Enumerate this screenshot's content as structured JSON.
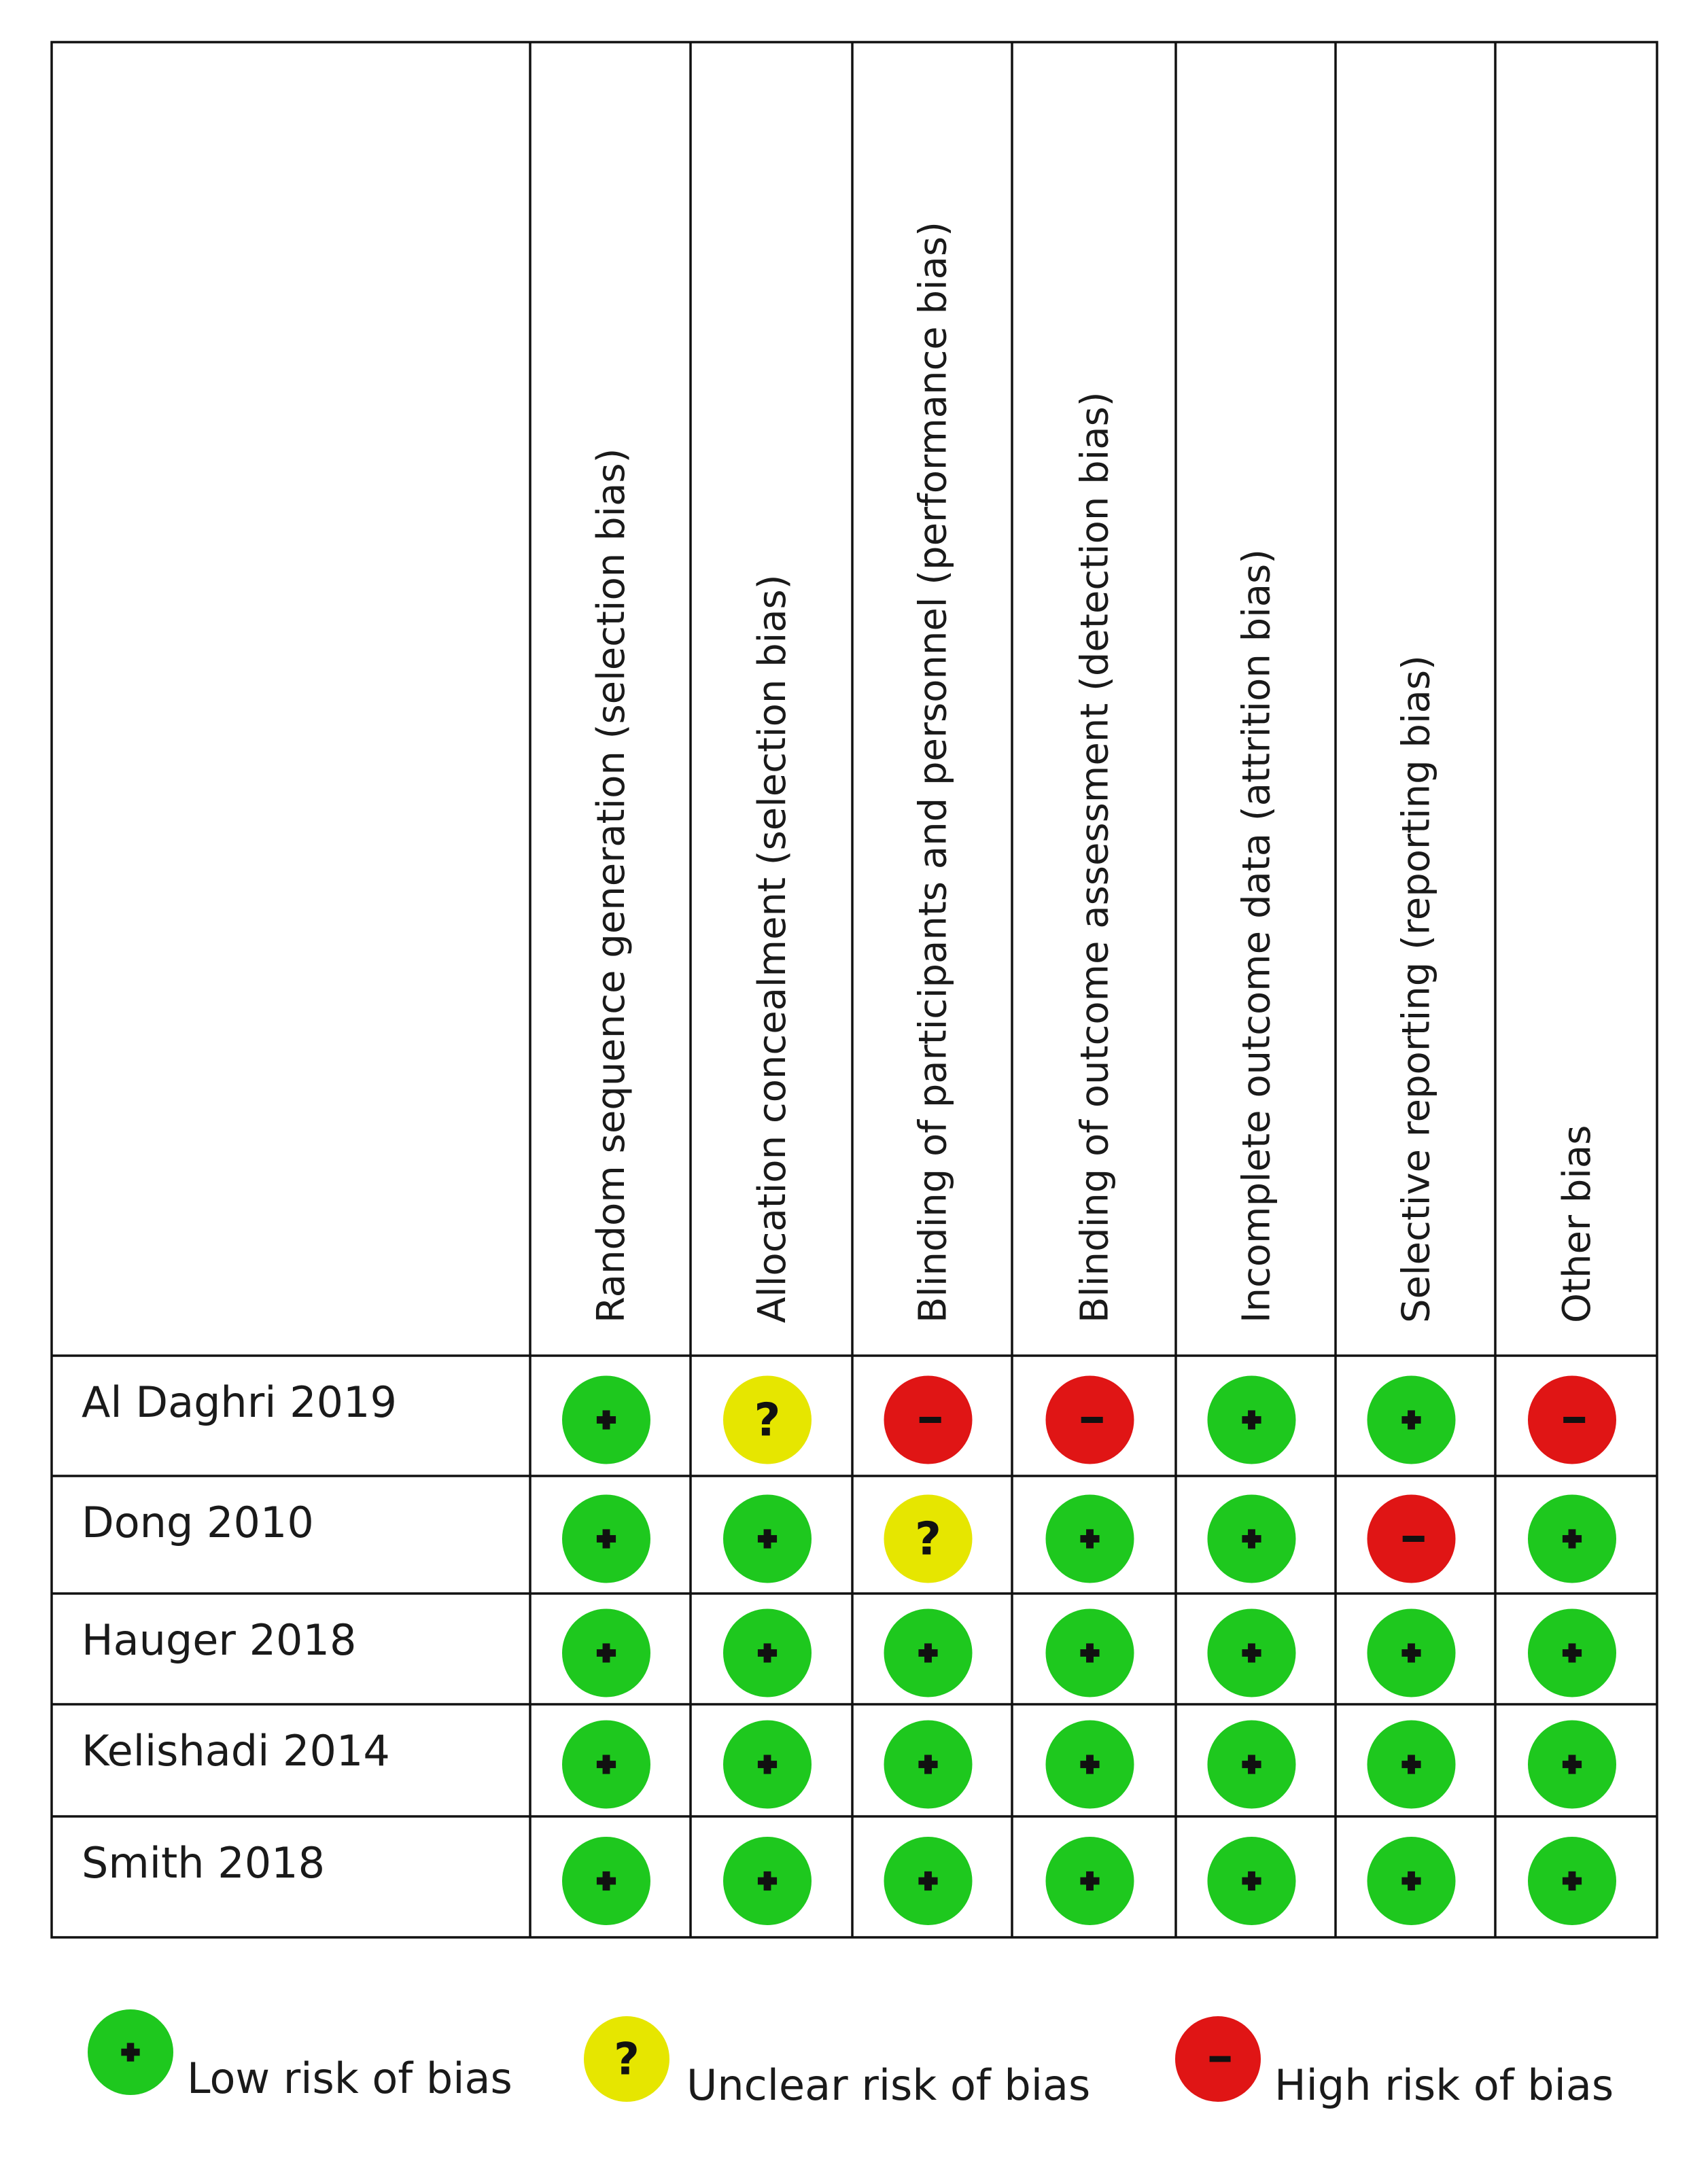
{
  "domains": [
    "Random sequence generation (selection bias)",
    "Allocation concealment (selection bias)",
    "Blinding of participants and personnel (performance bias)",
    "Blinding of outcome assessment (detection bias)",
    "Incomplete outcome data (attrition bias)",
    "Selective reporting (reporting bias)",
    "Other bias"
  ],
  "studies": [
    {
      "name": "Al Daghri 2019",
      "ratings": [
        "low",
        "unclear",
        "high",
        "high",
        "low",
        "low",
        "high"
      ]
    },
    {
      "name": "Dong 2010",
      "ratings": [
        "low",
        "low",
        "unclear",
        "low",
        "low",
        "high",
        "low"
      ]
    },
    {
      "name": "Hauger 2018",
      "ratings": [
        "low",
        "low",
        "low",
        "low",
        "low",
        "low",
        "low"
      ]
    },
    {
      "name": "Kelishadi 2014",
      "ratings": [
        "low",
        "low",
        "low",
        "low",
        "low",
        "low",
        "low"
      ]
    },
    {
      "name": "Smith 2018",
      "ratings": [
        "low",
        "low",
        "low",
        "low",
        "low",
        "low",
        "low"
      ]
    }
  ],
  "legend": [
    {
      "key": "low",
      "label": "Low risk of bias"
    },
    {
      "key": "unclear",
      "label": "Unclear risk of bias"
    },
    {
      "key": "high",
      "label": "High risk of bias"
    }
  ],
  "rating_styles": {
    "low": {
      "symbol": "+",
      "color": "#1ec81e",
      "icon": "plus-icon"
    },
    "unclear": {
      "symbol": "?",
      "color": "#e6e600",
      "icon": "question-icon"
    },
    "high": {
      "symbol": "−",
      "color": "#e01515",
      "icon": "minus-icon"
    }
  }
}
